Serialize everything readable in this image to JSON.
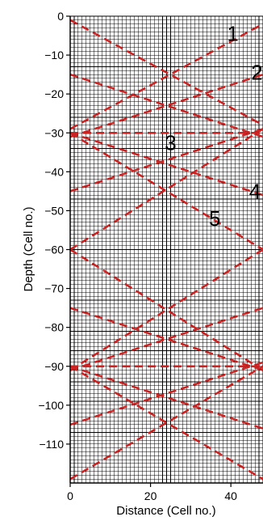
{
  "chart_data": {
    "type": "line",
    "title": "",
    "xlabel": "Distance (Cell no.)",
    "ylabel": "Depth (Cell no.)",
    "xlim": [
      0,
      48
    ],
    "ylim": [
      -120,
      0
    ],
    "x_ticks": [
      {
        "value": 0,
        "label": "0"
      },
      {
        "value": 20,
        "label": "20"
      },
      {
        "value": 40,
        "label": "40"
      }
    ],
    "y_ticks": [
      {
        "value": 0,
        "label": "0"
      },
      {
        "value": -10,
        "label": "−10"
      },
      {
        "value": -20,
        "label": "−20"
      },
      {
        "value": -30,
        "label": "−30"
      },
      {
        "value": -40,
        "label": "−40"
      },
      {
        "value": -50,
        "label": "−50"
      },
      {
        "value": -60,
        "label": "−60"
      },
      {
        "value": -70,
        "label": "−70"
      },
      {
        "value": -80,
        "label": "−80"
      },
      {
        "value": -90,
        "label": "−90"
      },
      {
        "value": -100,
        "label": "−100"
      },
      {
        "value": -110,
        "label": "−110"
      }
    ],
    "grid": true,
    "grid_cell": 1,
    "colors": {
      "grid": "#000000",
      "rays": "#cc2222",
      "axes": "#000000"
    },
    "series": [
      {
        "x": [
          0,
          48
        ],
        "y": [
          -1,
          -28
        ]
      },
      {
        "x": [
          0,
          48
        ],
        "y": [
          -29,
          -2
        ]
      },
      {
        "x": [
          0,
          48
        ],
        "y": [
          -15,
          -31
        ]
      },
      {
        "x": [
          0,
          48
        ],
        "y": [
          -31,
          -15
        ]
      },
      {
        "x": [
          0,
          48
        ],
        "y": [
          -30,
          -30
        ]
      },
      {
        "x": [
          0,
          48
        ],
        "y": [
          -30,
          -46
        ]
      },
      {
        "x": [
          0,
          48
        ],
        "y": [
          -45,
          -29
        ]
      },
      {
        "x": [
          0,
          48
        ],
        "y": [
          -30,
          -60
        ]
      },
      {
        "x": [
          0,
          48
        ],
        "y": [
          -60,
          -29
        ]
      },
      {
        "x": [
          0,
          48
        ],
        "y": [
          -60,
          -91
        ]
      },
      {
        "x": [
          0,
          48
        ],
        "y": [
          -91,
          -60
        ]
      },
      {
        "x": [
          0,
          48
        ],
        "y": [
          -75,
          -91
        ]
      },
      {
        "x": [
          0,
          48
        ],
        "y": [
          -91,
          -75
        ]
      },
      {
        "x": [
          0,
          48
        ],
        "y": [
          -90,
          -90
        ]
      },
      {
        "x": [
          0,
          48
        ],
        "y": [
          -90,
          -106
        ]
      },
      {
        "x": [
          0,
          48
        ],
        "y": [
          -105,
          -89
        ]
      },
      {
        "x": [
          0,
          48
        ],
        "y": [
          -90,
          -119
        ]
      },
      {
        "x": [
          0,
          48
        ],
        "y": [
          -119,
          -90
        ]
      }
    ],
    "ray_labels": [
      {
        "text": "1",
        "x": 40.5,
        "y": -4.5
      },
      {
        "text": "2",
        "x": 46.5,
        "y": -14.5
      },
      {
        "text": "3",
        "x": 25,
        "y": -32.5
      },
      {
        "text": "4",
        "x": 46,
        "y": -45
      },
      {
        "text": "5",
        "x": 36,
        "y": -52
      }
    ]
  }
}
